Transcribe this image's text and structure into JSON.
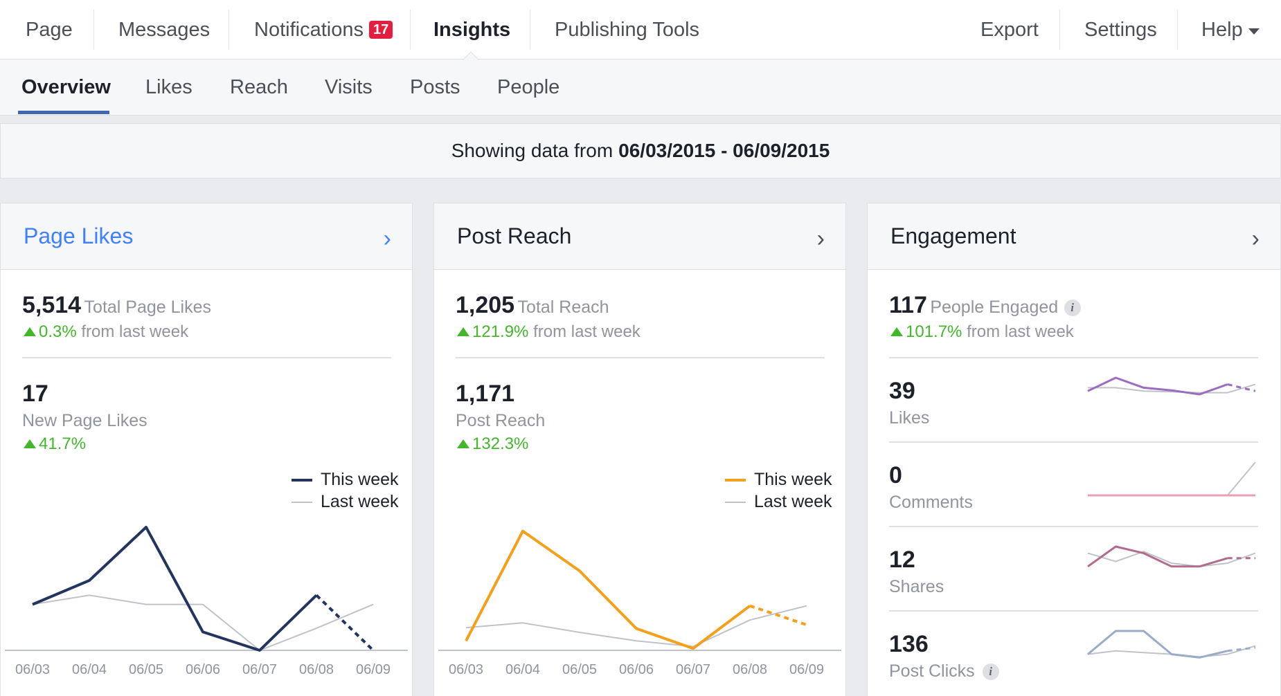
{
  "top_nav": {
    "items": [
      "Page",
      "Messages",
      "Notifications",
      "Insights",
      "Publishing Tools"
    ],
    "notifications_badge": "17",
    "right_items": [
      "Export",
      "Settings",
      "Help"
    ]
  },
  "sub_nav": {
    "tabs": [
      "Overview",
      "Likes",
      "Reach",
      "Visits",
      "Posts",
      "People"
    ]
  },
  "date_range": {
    "prefix": "Showing data from",
    "range": "06/03/2015 - 06/09/2015"
  },
  "legend": {
    "this_week": "This week",
    "last_week": "Last week"
  },
  "colors": {
    "page_likes": "#23355e",
    "post_reach": "#f5a01a",
    "last_week": "#bec3c9",
    "likes": "#9b6cbf",
    "comments": "#e8a0b5",
    "shares": "#b06b8d",
    "clicks": "#9aabc8",
    "positive": "#42b72a",
    "link": "#4080ff"
  },
  "cards": {
    "page_likes": {
      "title": "Page Likes",
      "total": "5,514",
      "total_label": "Total Page Likes",
      "change": "0.3%",
      "change_suffix": "from last week",
      "secondary": "17",
      "secondary_label": "New Page Likes",
      "secondary_change": "41.7%"
    },
    "post_reach": {
      "title": "Post Reach",
      "total": "1,205",
      "total_label": "Total Reach",
      "change": "121.9%",
      "change_suffix": "from last week",
      "secondary": "1,171",
      "secondary_label": "Post Reach",
      "secondary_change": "132.3%"
    },
    "engagement": {
      "title": "Engagement",
      "total": "117",
      "total_label": "People Engaged",
      "change": "101.7%",
      "change_suffix": "from last week",
      "rows": [
        {
          "value": "39",
          "label": "Likes"
        },
        {
          "value": "0",
          "label": "Comments"
        },
        {
          "value": "12",
          "label": "Shares"
        },
        {
          "value": "136",
          "label": "Post Clicks"
        }
      ]
    }
  },
  "chart_data": [
    {
      "type": "line",
      "id": "page-likes-chart",
      "categories": [
        "06/03",
        "06/04",
        "06/05",
        "06/06",
        "06/07",
        "06/08",
        "06/09"
      ],
      "series": [
        {
          "name": "This week",
          "values": [
            2.5,
            3.8,
            6.7,
            1.0,
            0.0,
            3.0,
            0.0
          ],
          "dashed_last_segment": true
        },
        {
          "name": "Last week",
          "values": [
            2.5,
            3.0,
            2.5,
            2.5,
            0.0,
            1.2,
            2.5
          ]
        }
      ],
      "ylim": [
        0,
        7
      ]
    },
    {
      "type": "line",
      "id": "post-reach-chart",
      "categories": [
        "06/03",
        "06/04",
        "06/05",
        "06/06",
        "06/07",
        "06/08",
        "06/09"
      ],
      "series": [
        {
          "name": "This week",
          "values": [
            50,
            630,
            420,
            115,
            10,
            235,
            135
          ],
          "dashed_last_segment": true
        },
        {
          "name": "Last week",
          "values": [
            120,
            145,
            95,
            50,
            20,
            160,
            235
          ]
        }
      ],
      "ylim": [
        0,
        680
      ]
    },
    {
      "type": "line",
      "id": "likes-sparkline",
      "series": [
        {
          "name": "This week",
          "values": [
            0.6,
            1.0,
            0.7,
            0.62,
            0.5,
            0.8,
            0.6
          ],
          "dashed_last_segment": true
        },
        {
          "name": "Last week",
          "values": [
            0.7,
            0.7,
            0.6,
            0.58,
            0.55,
            0.55,
            0.8
          ]
        }
      ],
      "ylim": [
        0,
        1
      ]
    },
    {
      "type": "line",
      "id": "comments-sparkline",
      "series": [
        {
          "name": "This week",
          "values": [
            0,
            0,
            0,
            0,
            0,
            0,
            0
          ]
        },
        {
          "name": "Last week",
          "values": [
            0,
            0,
            0,
            0,
            0,
            0,
            1
          ]
        }
      ],
      "ylim": [
        0,
        1
      ]
    },
    {
      "type": "line",
      "id": "shares-sparkline",
      "series": [
        {
          "name": "This week",
          "values": [
            0.4,
            1.0,
            0.8,
            0.4,
            0.4,
            0.65,
            0.65
          ],
          "dashed_last_segment": true
        },
        {
          "name": "Last week",
          "values": [
            0.8,
            0.55,
            0.85,
            0.5,
            0.4,
            0.5,
            0.8
          ]
        }
      ],
      "ylim": [
        0,
        1
      ]
    },
    {
      "type": "line",
      "id": "clicks-sparkline",
      "series": [
        {
          "name": "This week",
          "values": [
            0.3,
            1.0,
            1.0,
            0.3,
            0.2,
            0.4,
            0.5
          ],
          "dashed_last_segment": true
        },
        {
          "name": "Last week",
          "values": [
            0.3,
            0.4,
            0.35,
            0.3,
            0.22,
            0.3,
            0.55
          ]
        }
      ],
      "ylim": [
        0,
        1
      ]
    }
  ]
}
